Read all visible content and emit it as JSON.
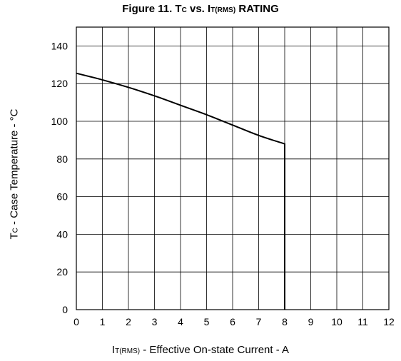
{
  "chart_data": {
    "type": "line",
    "title": {
      "lead": "Figure 11.  T",
      "sub1": "C",
      "mid": " vs. I",
      "sub2": "T(RMS)",
      "tail": " RATING"
    },
    "xlabel": {
      "lead": "I",
      "sub": "T(RMS)",
      "tail": " - Effective On-state Current - A"
    },
    "ylabel": {
      "lead": "T",
      "sub": "C",
      "tail": " - Case Temperature - °C"
    },
    "xlim": [
      0,
      12
    ],
    "ylim": [
      0,
      150
    ],
    "xticks": [
      0,
      1,
      2,
      3,
      4,
      5,
      6,
      7,
      8,
      9,
      10,
      11,
      12
    ],
    "yticks": [
      0,
      20,
      40,
      60,
      80,
      100,
      120,
      140
    ],
    "grid": true,
    "series": [
      {
        "x": [
          0,
          1,
          2,
          3,
          4,
          5,
          6,
          7,
          8,
          8
        ],
        "y": [
          125.5,
          122,
          118,
          113.5,
          108.5,
          103.5,
          98,
          92.5,
          88,
          0
        ]
      }
    ]
  }
}
